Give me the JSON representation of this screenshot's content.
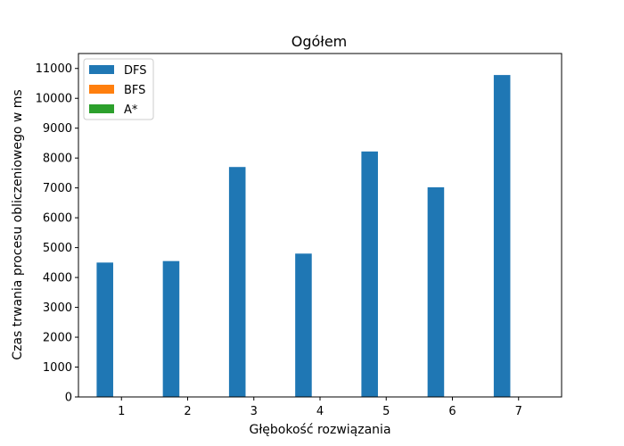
{
  "chart_data": {
    "type": "bar",
    "title": "Ogółem",
    "xlabel": "Głębokość rozwiązania",
    "ylabel": "Czas trwania procesu obliczeniowego w ms",
    "categories": [
      "1",
      "2",
      "3",
      "4",
      "5",
      "6",
      "7"
    ],
    "series": [
      {
        "name": "DFS",
        "color": "#1f77b4",
        "values": [
          4500,
          4550,
          7700,
          4800,
          8220,
          7020,
          10780
        ]
      },
      {
        "name": "BFS",
        "color": "#ff7f0e",
        "values": [
          0,
          0,
          0,
          0,
          0,
          0,
          0
        ]
      },
      {
        "name": "A*",
        "color": "#2ca02c",
        "values": [
          0,
          0,
          0,
          0,
          0,
          0,
          0
        ]
      }
    ],
    "ylim": [
      0,
      11500
    ],
    "yticks": [
      "0",
      "1000",
      "2000",
      "3000",
      "4000",
      "5000",
      "6000",
      "7000",
      "8000",
      "9000",
      "10000",
      "11000"
    ],
    "grid": false,
    "legend_position": "top-left"
  }
}
